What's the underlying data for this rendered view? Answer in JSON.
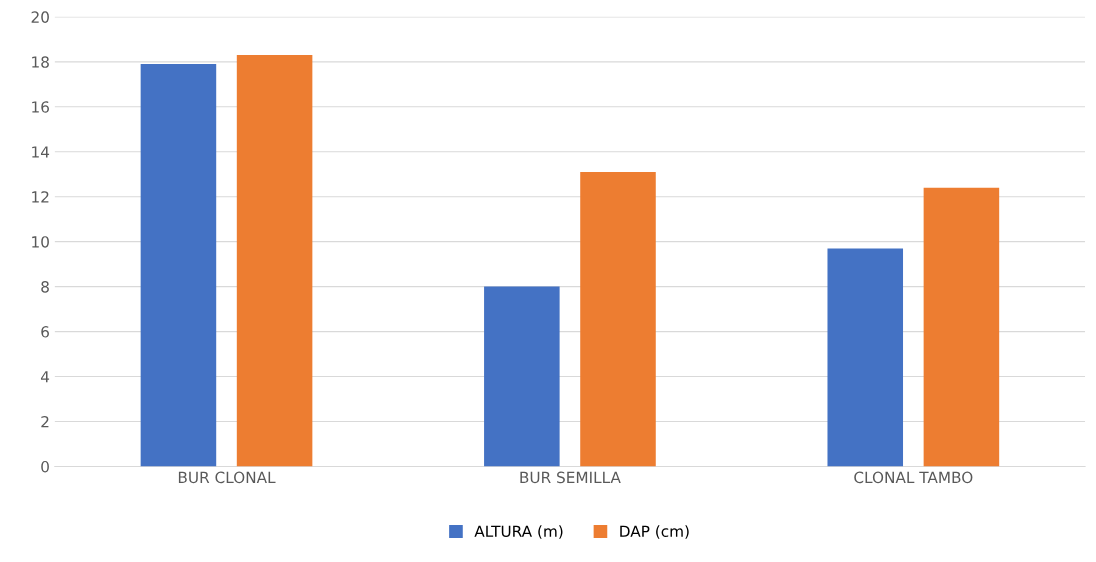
{
  "chart_data": {
    "type": "bar",
    "categories": [
      "BUR CLONAL",
      "BUR SEMILLA",
      "CLONAL TAMBO"
    ],
    "series": [
      {
        "name": "ALTURA (m)",
        "color": "#4472c4",
        "values": [
          17.9,
          8.0,
          9.7
        ]
      },
      {
        "name": "DAP (cm)",
        "color": "#ed7d31",
        "values": [
          18.3,
          13.1,
          12.4
        ]
      }
    ],
    "ylim": [
      0,
      20
    ],
    "yticks": [
      0,
      2,
      4,
      6,
      8,
      10,
      12,
      14,
      16,
      18,
      20
    ],
    "grid": "y",
    "legend": "bottom"
  }
}
